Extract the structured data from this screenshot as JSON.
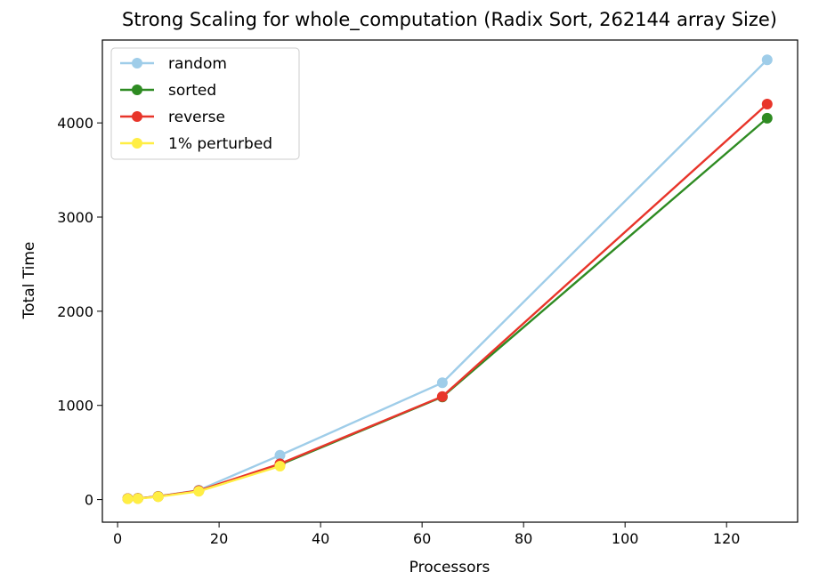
{
  "chart_data": {
    "type": "line",
    "title": "Strong Scaling for whole_computation (Radix Sort, 262144 array Size)",
    "xlabel": "Processors",
    "ylabel": "Total Time",
    "xlim": [
      -3,
      134
    ],
    "ylim": [
      -240,
      4880
    ],
    "xticks": [
      0,
      20,
      40,
      60,
      80,
      100,
      120
    ],
    "yticks": [
      0,
      1000,
      2000,
      3000,
      4000
    ],
    "grid": false,
    "legend_position": "upper-left",
    "x": [
      2,
      4,
      8,
      16,
      32,
      64,
      128
    ],
    "series": [
      {
        "name": "random",
        "color": "#9fcde9",
        "values": [
          10,
          12,
          35,
          100,
          470,
          1240,
          4670
        ]
      },
      {
        "name": "sorted",
        "color": "#2e8b22",
        "values": [
          10,
          12,
          33,
          93,
          370,
          1090,
          4050
        ]
      },
      {
        "name": "reverse",
        "color": "#e8352a",
        "values": [
          10,
          12,
          33,
          95,
          380,
          1095,
          4200
        ]
      },
      {
        "name": "1% perturbed",
        "color": "#ffee44",
        "values": [
          8,
          10,
          30,
          88,
          355,
          null,
          null
        ]
      }
    ]
  }
}
